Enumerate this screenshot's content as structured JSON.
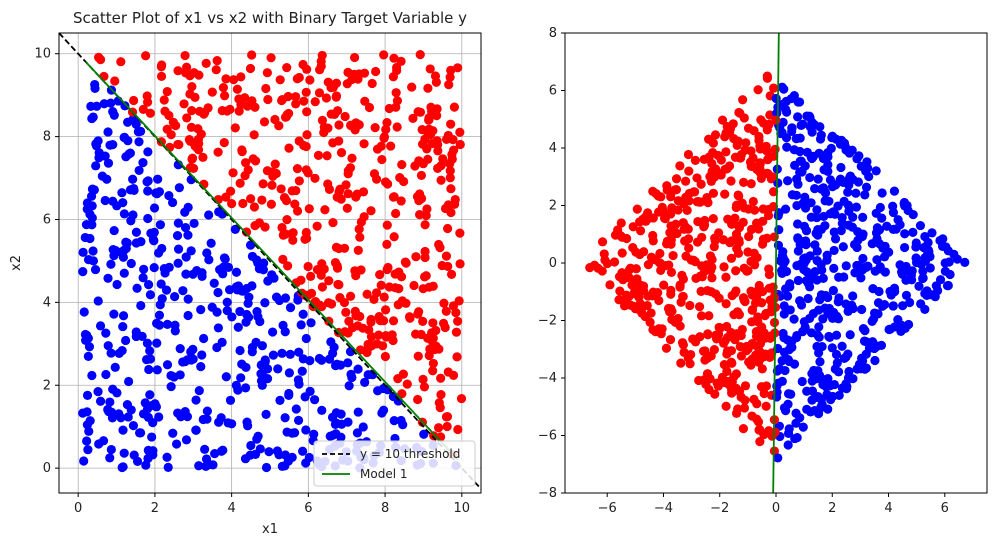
{
  "colors": {
    "class_0": "#0000ff",
    "class_1": "#ff0000",
    "threshold_line": "#000000",
    "model_line": "#008000",
    "grid": "#b0b0b0"
  },
  "chart_data": [
    {
      "type": "scatter",
      "title": "Scatter Plot of x1 vs x2 with Binary Target Variable y",
      "xlabel": "x1",
      "ylabel": "x2",
      "xlim": [
        -0.5,
        10.5
      ],
      "ylim": [
        -0.6,
        10.5
      ],
      "xticks": [
        "0",
        "2",
        "4",
        "6",
        "8",
        "10"
      ],
      "yticks": [
        "0",
        "2",
        "4",
        "6",
        "8",
        "10"
      ],
      "grid": true,
      "legend_position": "bottom-right",
      "legend": [
        "y = 10 threshold",
        "Model 1"
      ],
      "series": [
        {
          "class": 0,
          "color": "blue",
          "region": "x1 + x2 < 10",
          "n_points": 500
        },
        {
          "class": 1,
          "color": "red",
          "region": "x1 + x2 > 10",
          "n_points": 500
        }
      ],
      "lines": [
        {
          "label": "y = 10 threshold",
          "style": "dashed",
          "color": "black",
          "x": [
            -0.5,
            10.5
          ],
          "y": [
            10.5,
            -0.5
          ]
        },
        {
          "label": "Model 1",
          "style": "solid",
          "color": "green",
          "x": [
            0.2,
            9.9
          ],
          "y": [
            9.8,
            0.2
          ]
        }
      ]
    },
    {
      "type": "scatter",
      "title": "",
      "xlabel": "",
      "ylabel": "",
      "xlim": [
        -7.5,
        7.5
      ],
      "ylim": [
        -8,
        8
      ],
      "xticks": [
        "−6",
        "−4",
        "−2",
        "0",
        "2",
        "4",
        "6"
      ],
      "yticks": [
        "−8",
        "−6",
        "−4",
        "−2",
        "0",
        "2",
        "4",
        "6",
        "8"
      ],
      "grid": false,
      "series": [
        {
          "class": 1,
          "color": "red",
          "region": "rotated x < 0 (diamond, |x|+|y| < 7)",
          "n_points": 500
        },
        {
          "class": 0,
          "color": "blue",
          "region": "rotated x > 0 (diamond, |x|+|y| < 7)",
          "n_points": 500
        }
      ],
      "lines": [
        {
          "label": "",
          "style": "solid",
          "color": "green",
          "x": [
            0.1,
            -0.1
          ],
          "y": [
            8,
            -8
          ]
        }
      ]
    }
  ]
}
